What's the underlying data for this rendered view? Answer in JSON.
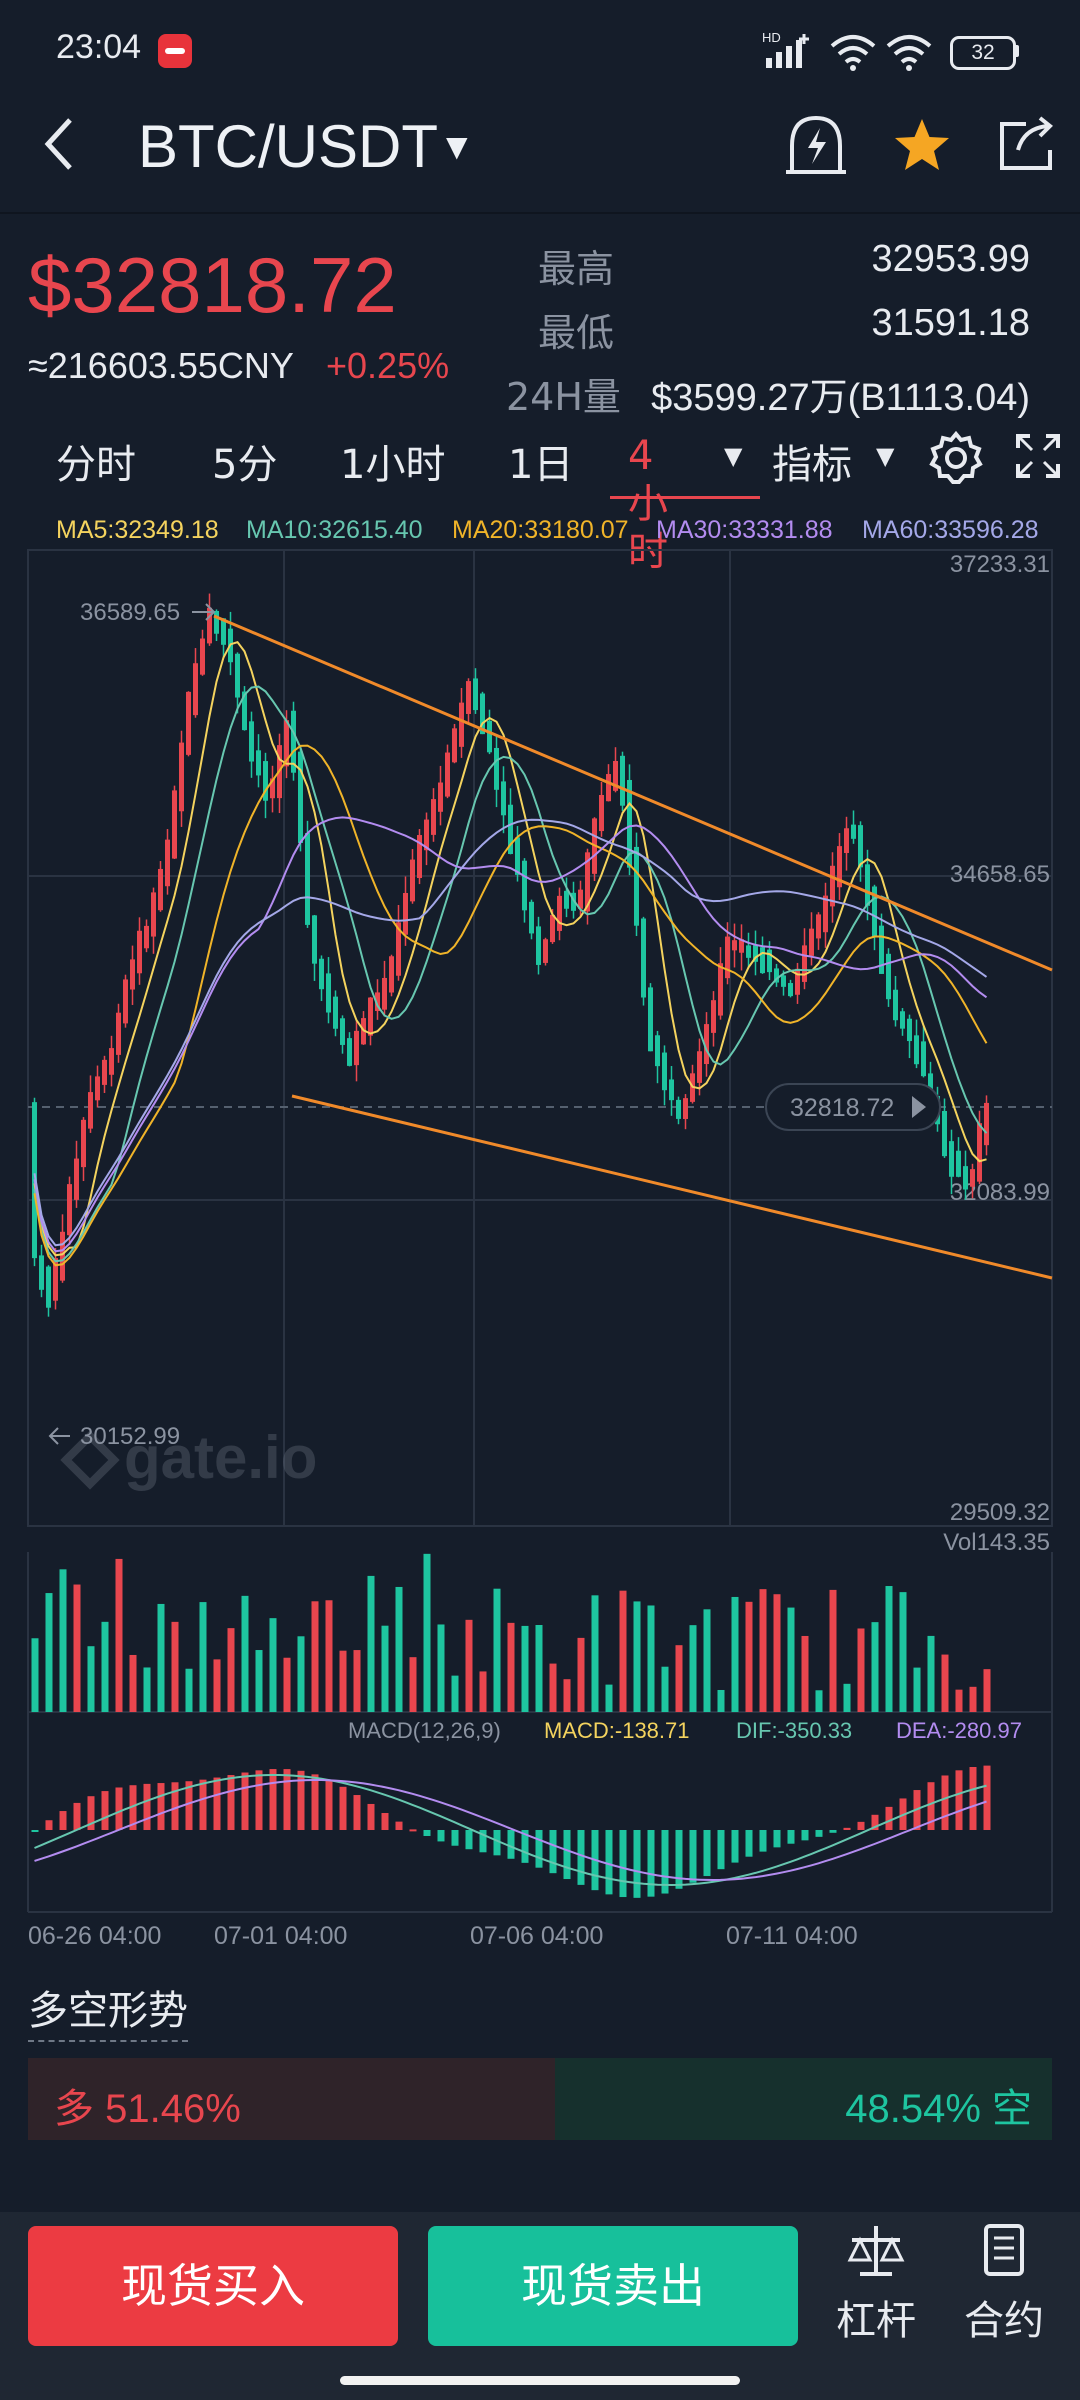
{
  "status_bar": {
    "time": "23:04",
    "network": "HD",
    "battery": "32"
  },
  "header": {
    "pair": "BTC/USDT"
  },
  "ticker": {
    "price": "$32818.72",
    "cny": "≈216603.55CNY",
    "change": "+0.25%",
    "high_label": "最高",
    "high": "32953.99",
    "low_label": "最低",
    "low": "31591.18",
    "vol_label": "24H量",
    "vol": "$3599.27万(B1113.04)"
  },
  "tabs": {
    "t1": "分时",
    "t2": "5分",
    "t3": "1小时",
    "t4": "1日",
    "t5": "4小时",
    "indicator": "指标"
  },
  "ma_legend": {
    "ma5": "MA5:32349.18",
    "ma10": "MA10:32615.40",
    "ma20": "MA20:33180.07",
    "ma30": "MA30:33331.88",
    "ma60": "MA60:33596.28"
  },
  "chart_data": {
    "type": "candlestick",
    "price_axis": [
      "37233.31",
      "34658.65",
      "32083.99",
      "29509.32"
    ],
    "ylim": [
      29509.32,
      37233.31
    ],
    "x_ticks": [
      "06-26 04:00",
      "07-01 04:00",
      "07-06 04:00",
      "07-11 04:00"
    ],
    "high_marker": "36589.65",
    "low_marker": "30152.99",
    "current_price_tag": "32818.72",
    "volume_label": "Vol143.35",
    "macd_label": "MACD(12,26,9)",
    "macd_value": "MACD:-138.71",
    "dif_value": "DIF:-350.33",
    "dea_value": "DEA:-280.97",
    "watermark": "gate.io",
    "colors": {
      "up": "#e8464e",
      "down": "#1ec5a0",
      "ma5": "#f4d35e",
      "ma10": "#67c7b0",
      "ma20": "#f0b429",
      "ma30": "#b38cf0",
      "ma60": "#a4a8e8",
      "trendline": "#f08a2a"
    }
  },
  "sentiment": {
    "title": "多空形势",
    "long_label": "多 51.46%",
    "short_label": "48.54% 空",
    "long_ratio": 0.5146
  },
  "bottom_bar": {
    "buy": "现货买入",
    "sell": "现货卖出",
    "leverage": "杠杆",
    "contract": "合约"
  }
}
